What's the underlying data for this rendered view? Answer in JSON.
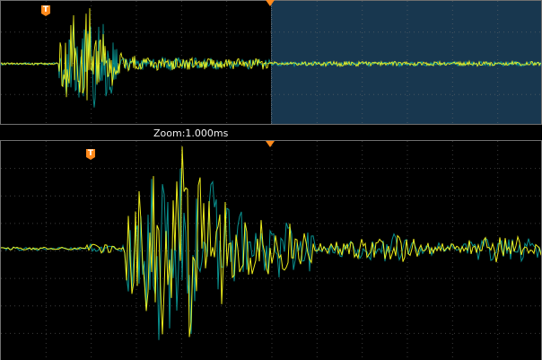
{
  "zoom_label": "Zoom:1.000ms",
  "top_trigger_marker": "T",
  "bottom_trigger_marker": "T",
  "colors": {
    "background": "#000000",
    "grid": "#6f6f6f",
    "selection_window": "#18374f",
    "trigger": "#ff8a1c",
    "trace_yellow": "#ffff1d",
    "trace_cyan": "#0aaaa8"
  },
  "icons": {
    "trigger_marker": "orange-trigger-marker-icon",
    "center_trigger_point": "orange-downward-triangle-icon"
  }
}
